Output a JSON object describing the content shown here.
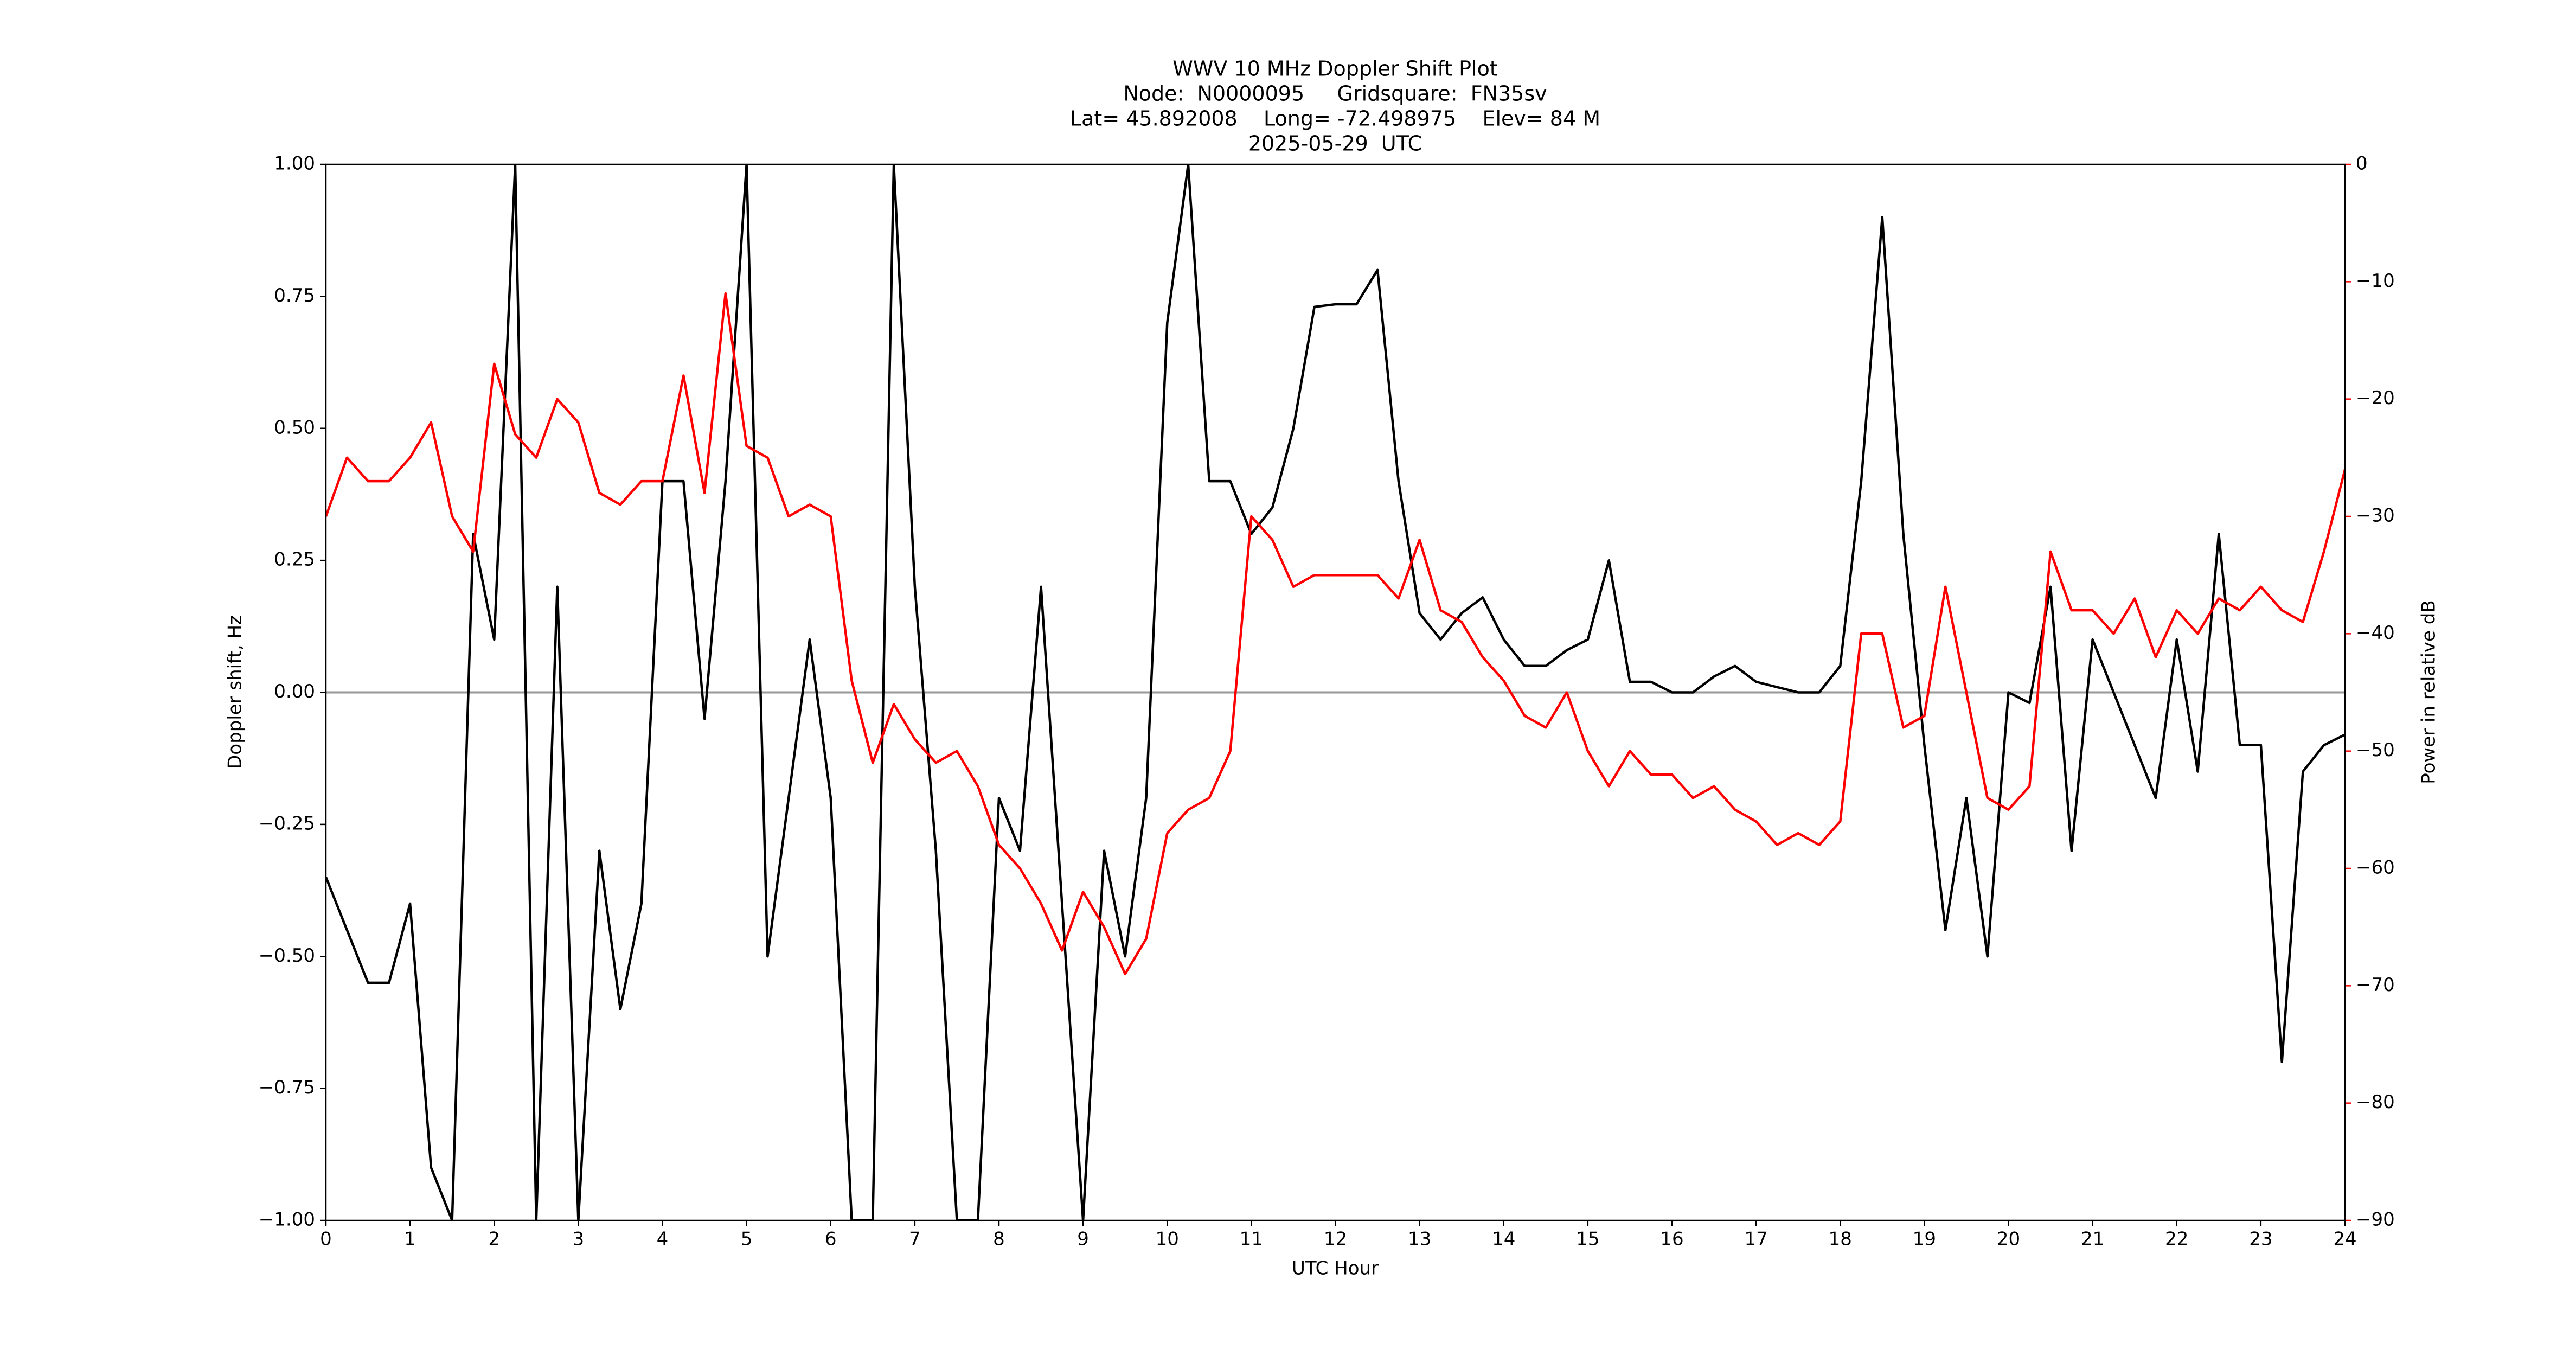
{
  "chart_data": {
    "type": "line",
    "title": [
      "WWV 10 MHz Doppler Shift Plot",
      "Node:  N0000095     Gridsquare:  FN35sv",
      "Lat= 45.892008    Long= -72.498975    Elev= 84 M",
      "2025-05-29  UTC"
    ],
    "x_label": "UTC Hour",
    "y_label": "Doppler shift, Hz",
    "y2_label": "Power in relative dB",
    "x": [
      0,
      0.25,
      0.5,
      0.75,
      1,
      1.25,
      1.5,
      1.75,
      2,
      2.25,
      2.5,
      2.75,
      3,
      3.25,
      3.5,
      3.75,
      4,
      4.25,
      4.5,
      4.75,
      5,
      5.25,
      5.5,
      5.75,
      6,
      6.25,
      6.5,
      6.75,
      7,
      7.25,
      7.5,
      7.75,
      8,
      8.25,
      8.5,
      8.75,
      9,
      9.25,
      9.5,
      9.75,
      10,
      10.25,
      10.5,
      10.75,
      11,
      11.25,
      11.5,
      11.75,
      12,
      12.25,
      12.5,
      12.75,
      13,
      13.25,
      13.5,
      13.75,
      14,
      14.25,
      14.5,
      14.75,
      15,
      15.25,
      15.5,
      15.75,
      16,
      16.25,
      16.5,
      16.75,
      17,
      17.25,
      17.5,
      17.75,
      18,
      18.25,
      18.5,
      18.75,
      19,
      19.25,
      19.5,
      19.75,
      20,
      20.25,
      20.5,
      20.75,
      21,
      21.25,
      21.5,
      21.75,
      22,
      22.25,
      22.5,
      22.75,
      23,
      23.25,
      23.5,
      23.75,
      24
    ],
    "series": [
      {
        "color": "#000000",
        "axis": "y",
        "values": [
          -0.35,
          -0.45,
          -0.55,
          -0.55,
          -0.4,
          -0.9,
          -1.0,
          0.3,
          0.1,
          1.0,
          -1.0,
          0.2,
          -1.0,
          -0.3,
          -0.6,
          -0.4,
          0.4,
          0.4,
          -0.05,
          0.4,
          1.0,
          -0.5,
          -0.2,
          0.1,
          -0.2,
          -1.0,
          -1.0,
          1.0,
          0.2,
          -0.3,
          -1.0,
          -1.0,
          -0.2,
          -0.3,
          0.2,
          -0.4,
          -1.0,
          -0.3,
          -0.5,
          -0.2,
          0.7,
          1.0,
          0.4,
          0.4,
          0.3,
          0.35,
          0.5,
          0.73,
          0.735,
          0.735,
          0.8,
          0.4,
          0.15,
          0.1,
          0.15,
          0.18,
          0.1,
          0.05,
          0.05,
          0.08,
          0.1,
          0.25,
          0.02,
          0.02,
          0.0,
          0.0,
          0.03,
          0.05,
          0.02,
          0.01,
          0.0,
          0.0,
          0.05,
          0.4,
          0.9,
          0.3,
          -0.1,
          -0.45,
          -0.2,
          -0.5,
          0.0,
          -0.02,
          0.2,
          -0.3,
          0.1,
          0.0,
          -0.1,
          -0.2,
          0.1,
          -0.15,
          0.3,
          -0.1,
          -0.1,
          -0.7,
          -0.15,
          -0.1,
          -0.08
        ]
      },
      {
        "color": "#ff0000",
        "axis": "y2",
        "values": [
          -30,
          -25,
          -27,
          -27,
          -25,
          -22,
          -30,
          -33,
          -17,
          -23,
          -25,
          -20,
          -22,
          -28,
          -29,
          -27,
          -27,
          -18,
          -28,
          -11,
          -24,
          -25,
          -30,
          -29,
          -30,
          -44,
          -51,
          -46,
          -49,
          -51,
          -50,
          -53,
          -58,
          -60,
          -63,
          -67,
          -62,
          -65,
          -69,
          -66,
          -57,
          -55,
          -54,
          -50,
          -30,
          -32,
          -36,
          -35,
          -35,
          -35,
          -35,
          -37,
          -32,
          -38,
          -39,
          -42,
          -44,
          -47,
          -48,
          -45,
          -50,
          -53,
          -50,
          -52,
          -52,
          -54,
          -53,
          -55,
          -56,
          -58,
          -57,
          -58,
          -56,
          -40,
          -40,
          -48,
          -47,
          -36,
          -45,
          -54,
          -55,
          -53,
          -33,
          -38,
          -38,
          -40,
          -37,
          -42,
          -38,
          -40,
          -37,
          -38,
          -36,
          -38,
          -39,
          -33,
          -26
        ]
      }
    ],
    "xlim": [
      0,
      24
    ],
    "xticks": [
      0,
      1,
      2,
      3,
      4,
      5,
      6,
      7,
      8,
      9,
      10,
      11,
      12,
      13,
      14,
      15,
      16,
      17,
      18,
      19,
      20,
      21,
      22,
      23,
      24
    ],
    "ylim": [
      -1,
      1
    ],
    "yticks": [
      {
        "value": -1,
        "label": "−1.00"
      },
      {
        "value": -0.75,
        "label": "−0.75"
      },
      {
        "value": -0.5,
        "label": "−0.50"
      },
      {
        "value": -0.25,
        "label": "−0.25"
      },
      {
        "value": 0,
        "label": "0.00"
      },
      {
        "value": 0.25,
        "label": "0.25"
      },
      {
        "value": 0.5,
        "label": "0.50"
      },
      {
        "value": 0.75,
        "label": "0.75"
      },
      {
        "value": 1,
        "label": "1.00"
      }
    ],
    "y2lim": [
      -90,
      0
    ],
    "y2ticks": [
      {
        "value": -90,
        "label": "−90"
      },
      {
        "value": -80,
        "label": "−80"
      },
      {
        "value": -70,
        "label": "−70"
      },
      {
        "value": -60,
        "label": "−60"
      },
      {
        "value": -50,
        "label": "−50"
      },
      {
        "value": -40,
        "label": "−40"
      },
      {
        "value": -30,
        "label": "−30"
      },
      {
        "value": -20,
        "label": "−20"
      },
      {
        "value": -10,
        "label": "−10"
      },
      0
    ],
    "y2_color": "#ff0000",
    "reference_line": 0,
    "reference_color": "#999999"
  }
}
